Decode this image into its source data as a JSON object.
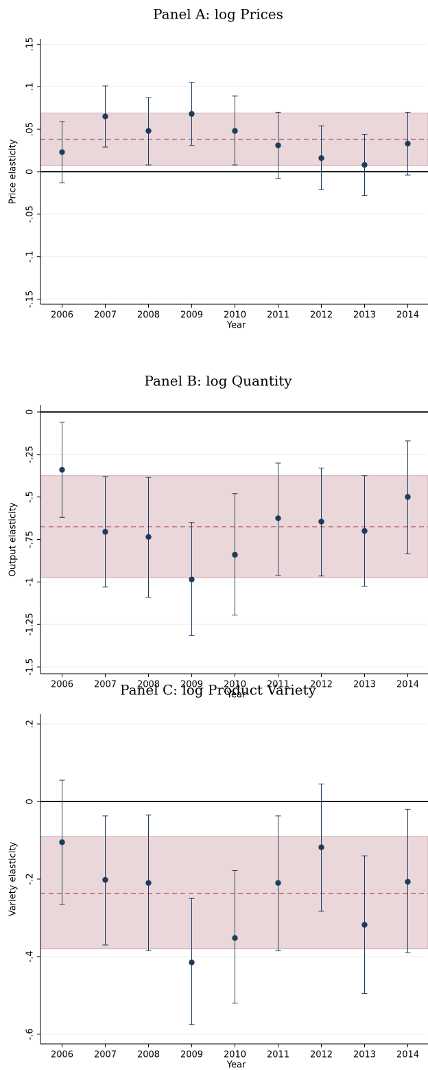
{
  "chart_data": [
    {
      "type": "errorbar",
      "title": "Panel A: log Prices",
      "x_label": "Year",
      "y_label": "Price elasticity",
      "categories": [
        "2006",
        "2007",
        "2008",
        "2009",
        "2010",
        "2011",
        "2012",
        "2013",
        "2014"
      ],
      "values": [
        0.023,
        0.065,
        0.048,
        0.068,
        0.048,
        0.031,
        0.016,
        0.008,
        0.033
      ],
      "lower": [
        -0.013,
        0.029,
        0.008,
        0.031,
        0.008,
        -0.008,
        -0.021,
        -0.028,
        -0.004
      ],
      "upper": [
        0.059,
        0.101,
        0.087,
        0.105,
        0.089,
        0.07,
        0.054,
        0.044,
        0.07
      ],
      "color": "#1f3b5c",
      "mean": 0.038,
      "band": [
        0.007,
        0.069
      ],
      "band_color": "#e9d7da",
      "mean_color": "#b5485d",
      "zero_line": 0,
      "ylim": [
        -0.156,
        0.156
      ],
      "yticks": [
        {
          "value": -0.15,
          "label": "-.15"
        },
        {
          "value": -0.1,
          "label": "-.1"
        },
        {
          "value": -0.05,
          "label": "-.05"
        },
        0,
        {
          "value": 0.05,
          "label": ".05"
        },
        {
          "value": 0.1,
          "label": ".1"
        },
        {
          "value": 0.15,
          "label": ".15"
        }
      ],
      "grid": true
    },
    {
      "type": "errorbar",
      "title": "Panel B: log Quantity",
      "x_label": "Year",
      "y_label": "Output elasticity",
      "categories": [
        "2006",
        "2007",
        "2008",
        "2009",
        "2010",
        "2011",
        "2012",
        "2013",
        "2014"
      ],
      "values": [
        -0.34,
        -0.705,
        -0.735,
        -0.985,
        -0.84,
        -0.625,
        -0.645,
        -0.7,
        -0.5
      ],
      "lower": [
        -0.62,
        -1.03,
        -1.09,
        -1.315,
        -1.195,
        -0.96,
        -0.965,
        -1.025,
        -0.835
      ],
      "upper": [
        -0.06,
        -0.38,
        -0.385,
        -0.65,
        -0.48,
        -0.3,
        -0.33,
        -0.375,
        -0.17
      ],
      "color": "#1f3b5c",
      "mean": -0.675,
      "band": [
        -0.975,
        -0.375
      ],
      "band_color": "#e9d7da",
      "mean_color": "#b5485d",
      "zero_line": 0,
      "ylim": [
        -1.54,
        0.04
      ],
      "yticks": [
        -1.5,
        {
          "value": -1.25,
          "label": "-1.25"
        },
        -1,
        {
          "value": -0.75,
          "label": "-.75"
        },
        {
          "value": -0.5,
          "label": "-.5"
        },
        {
          "value": -0.25,
          "label": "-.25"
        },
        0
      ],
      "grid": true
    },
    {
      "type": "errorbar",
      "title": "Panel C: log Product Variety",
      "x_label": "Year",
      "y_label": "Variety elasticity",
      "categories": [
        "2006",
        "2007",
        "2008",
        "2009",
        "2010",
        "2011",
        "2012",
        "2013",
        "2014"
      ],
      "values": [
        -0.105,
        -0.202,
        -0.21,
        -0.415,
        -0.352,
        -0.21,
        -0.118,
        -0.318,
        -0.207
      ],
      "lower": [
        -0.265,
        -0.37,
        -0.385,
        -0.575,
        -0.52,
        -0.385,
        -0.283,
        -0.495,
        -0.39
      ],
      "upper": [
        0.055,
        -0.037,
        -0.035,
        -0.25,
        -0.178,
        -0.037,
        0.045,
        -0.14,
        -0.02
      ],
      "color": "#1f3b5c",
      "mean": -0.237,
      "band": [
        -0.38,
        -0.09
      ],
      "band_color": "#e9d7da",
      "mean_color": "#b5485d",
      "zero_line": 0,
      "ylim": [
        -0.625,
        0.225
      ],
      "yticks": [
        {
          "value": -0.6,
          "label": "-.6"
        },
        {
          "value": -0.4,
          "label": "-.4"
        },
        {
          "value": -0.2,
          "label": "-.2"
        },
        0,
        {
          "value": 0.2,
          "label": ".2"
        }
      ],
      "grid": true
    }
  ]
}
